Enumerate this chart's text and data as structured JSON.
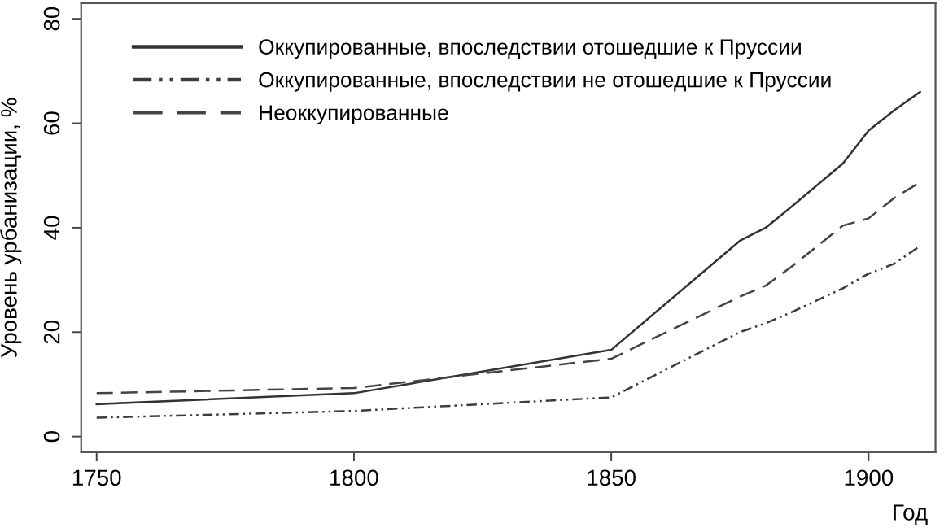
{
  "chart_data": {
    "type": "line",
    "xlabel": "Год",
    "ylabel": "Уровень урбанизации, %",
    "x": [
      1750,
      1800,
      1850,
      1875,
      1880,
      1885,
      1895,
      1900,
      1905,
      1910
    ],
    "series": [
      {
        "name": "Оккупированные, впоследствии отошедшие к Пруссии",
        "color": "#333333",
        "line_style": "solid",
        "values": [
          6.2,
          8.3,
          16.6,
          37.5,
          40,
          44,
          52.3,
          58.6,
          62.5,
          66
        ]
      },
      {
        "name": "Оккупированные, впоследствии не отошедшие к Пруссии",
        "color": "#3c3c3c",
        "line_style": "dashdot",
        "values": [
          3.6,
          4.9,
          7.5,
          20,
          21.7,
          23.8,
          28.4,
          31.2,
          33.1,
          36.5
        ]
      },
      {
        "name": "Неоккупированные",
        "color": "#444444",
        "line_style": "dashed",
        "values": [
          8.3,
          9.3,
          14.9,
          26.8,
          28.9,
          32.5,
          40.4,
          41.8,
          45.7,
          48.7
        ]
      }
    ],
    "xlim": [
      1747,
      1913
    ],
    "ylim": [
      -3,
      83
    ],
    "xticks": [
      1750,
      1800,
      1850,
      1900
    ],
    "yticks": [
      0,
      20,
      40,
      60,
      80
    ],
    "grid": false,
    "legend": "top",
    "marker": "none"
  }
}
